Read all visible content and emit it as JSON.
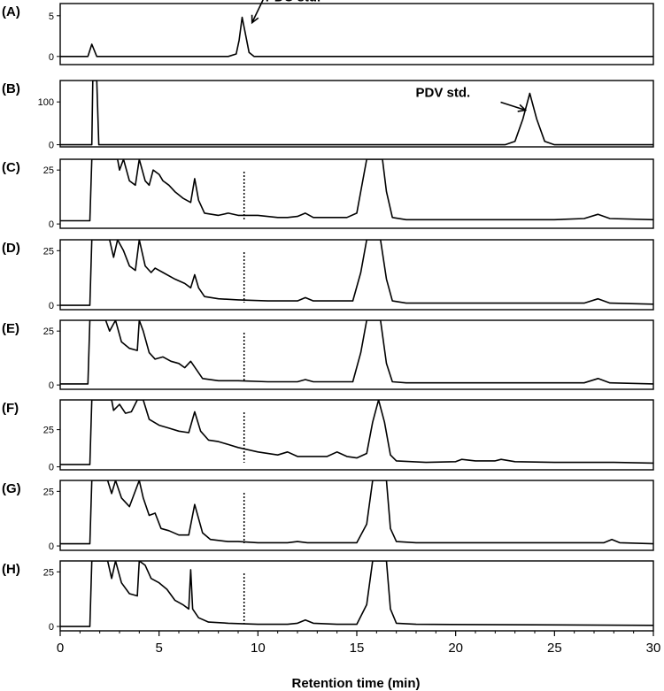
{
  "chart_data": {
    "type": "line",
    "xlabel": "Retention time (min)",
    "xlim": [
      0,
      30
    ],
    "xticks": [
      0,
      5,
      10,
      15,
      20,
      25,
      30
    ],
    "xtick_labels": [
      "0",
      "5",
      "10",
      "15",
      "20",
      "25",
      "30"
    ],
    "marker_time": 9.3,
    "panels": [
      {
        "id": "A",
        "label": "(A)",
        "ylim": [
          -1,
          6.5
        ],
        "yticks": [
          0,
          5
        ],
        "ytick_labels": [
          "0",
          "5"
        ],
        "annotation": {
          "text": "PDC std.",
          "x": 9.3,
          "y": 4.8
        },
        "points": [
          [
            0,
            0
          ],
          [
            1.4,
            0
          ],
          [
            1.6,
            1.5
          ],
          [
            1.85,
            0
          ],
          [
            8.5,
            0
          ],
          [
            8.9,
            0.3
          ],
          [
            9.05,
            2
          ],
          [
            9.2,
            4.8
          ],
          [
            9.35,
            3
          ],
          [
            9.55,
            0.5
          ],
          [
            9.8,
            0
          ],
          [
            30,
            0
          ]
        ]
      },
      {
        "id": "B",
        "label": "(B)",
        "ylim": [
          -5,
          150
        ],
        "yticks": [
          0,
          100
        ],
        "ytick_labels": [
          "0",
          "100"
        ],
        "annotation": {
          "text": "PDV std.",
          "x": 23.8,
          "y": 120
        },
        "points": [
          [
            0,
            0
          ],
          [
            1.6,
            0
          ],
          [
            1.65,
            150
          ],
          [
            1.85,
            150
          ],
          [
            1.95,
            0
          ],
          [
            22.5,
            0
          ],
          [
            23.0,
            8
          ],
          [
            23.4,
            60
          ],
          [
            23.75,
            120
          ],
          [
            24.1,
            60
          ],
          [
            24.5,
            8
          ],
          [
            25.0,
            0
          ],
          [
            30,
            0
          ]
        ]
      },
      {
        "id": "C",
        "label": "(C)",
        "ylim": [
          -2,
          30
        ],
        "yticks": [
          0,
          25
        ],
        "ytick_labels": [
          "0",
          "25"
        ],
        "points": [
          [
            0,
            1.5
          ],
          [
            1.5,
            1.5
          ],
          [
            1.6,
            30
          ],
          [
            2.9,
            30
          ],
          [
            3.0,
            25
          ],
          [
            3.2,
            30
          ],
          [
            3.5,
            20
          ],
          [
            3.8,
            18
          ],
          [
            4.0,
            30
          ],
          [
            4.3,
            20
          ],
          [
            4.5,
            18
          ],
          [
            4.7,
            25
          ],
          [
            5.0,
            23
          ],
          [
            5.2,
            20
          ],
          [
            5.5,
            18
          ],
          [
            5.8,
            15
          ],
          [
            6.2,
            12
          ],
          [
            6.6,
            10
          ],
          [
            6.8,
            21
          ],
          [
            7.0,
            11
          ],
          [
            7.3,
            5
          ],
          [
            8.0,
            4
          ],
          [
            8.5,
            5
          ],
          [
            9.0,
            4
          ],
          [
            10.0,
            4
          ],
          [
            11.0,
            3
          ],
          [
            11.5,
            3
          ],
          [
            12.0,
            3.5
          ],
          [
            12.4,
            5
          ],
          [
            12.8,
            3
          ],
          [
            13.5,
            3
          ],
          [
            14.0,
            3
          ],
          [
            14.5,
            3
          ],
          [
            15.0,
            5
          ],
          [
            15.3,
            20
          ],
          [
            15.5,
            30
          ],
          [
            16.3,
            30
          ],
          [
            16.5,
            15
          ],
          [
            16.8,
            3
          ],
          [
            17.5,
            2
          ],
          [
            19,
            2
          ],
          [
            25,
            2
          ],
          [
            26.5,
            2.5
          ],
          [
            27.2,
            4.5
          ],
          [
            27.8,
            2.5
          ],
          [
            30,
            2
          ]
        ]
      },
      {
        "id": "D",
        "label": "(D)",
        "ylim": [
          -2,
          30
        ],
        "yticks": [
          0,
          25
        ],
        "ytick_labels": [
          "0",
          "25"
        ],
        "points": [
          [
            0,
            0
          ],
          [
            1.5,
            0
          ],
          [
            1.6,
            30
          ],
          [
            2.5,
            30
          ],
          [
            2.7,
            22
          ],
          [
            2.9,
            30
          ],
          [
            3.2,
            25
          ],
          [
            3.5,
            18
          ],
          [
            3.8,
            16
          ],
          [
            4.0,
            30
          ],
          [
            4.3,
            18
          ],
          [
            4.6,
            15
          ],
          [
            4.8,
            17
          ],
          [
            5.2,
            15
          ],
          [
            5.8,
            12
          ],
          [
            6.3,
            10
          ],
          [
            6.6,
            8
          ],
          [
            6.8,
            14
          ],
          [
            7.0,
            8
          ],
          [
            7.3,
            4
          ],
          [
            8.0,
            3
          ],
          [
            9.0,
            2.5
          ],
          [
            10.5,
            2
          ],
          [
            11.5,
            2
          ],
          [
            12.0,
            2
          ],
          [
            12.4,
            3.5
          ],
          [
            12.8,
            2
          ],
          [
            14.0,
            2
          ],
          [
            14.8,
            2
          ],
          [
            15.2,
            15
          ],
          [
            15.5,
            30
          ],
          [
            16.2,
            30
          ],
          [
            16.5,
            12
          ],
          [
            16.8,
            2
          ],
          [
            17.5,
            1
          ],
          [
            26.5,
            1
          ],
          [
            27.2,
            3
          ],
          [
            27.8,
            1
          ],
          [
            30,
            0.5
          ]
        ]
      },
      {
        "id": "E",
        "label": "(E)",
        "ylim": [
          -2,
          30
        ],
        "yticks": [
          0,
          25
        ],
        "ytick_labels": [
          "0",
          "25"
        ],
        "points": [
          [
            0,
            0.5
          ],
          [
            1.4,
            0.5
          ],
          [
            1.5,
            30
          ],
          [
            2.3,
            30
          ],
          [
            2.5,
            25
          ],
          [
            2.8,
            30
          ],
          [
            3.1,
            20
          ],
          [
            3.5,
            17
          ],
          [
            3.9,
            16
          ],
          [
            4.0,
            30
          ],
          [
            4.2,
            25
          ],
          [
            4.5,
            15
          ],
          [
            4.8,
            12
          ],
          [
            5.2,
            13
          ],
          [
            5.6,
            11
          ],
          [
            6.0,
            10
          ],
          [
            6.3,
            8
          ],
          [
            6.6,
            11
          ],
          [
            6.9,
            7
          ],
          [
            7.2,
            3
          ],
          [
            8.0,
            2
          ],
          [
            9.0,
            2
          ],
          [
            10.5,
            1.5
          ],
          [
            11.5,
            1.5
          ],
          [
            12.0,
            1.5
          ],
          [
            12.4,
            2.5
          ],
          [
            12.8,
            1.5
          ],
          [
            14.0,
            1.5
          ],
          [
            14.8,
            1.5
          ],
          [
            15.2,
            15
          ],
          [
            15.5,
            30
          ],
          [
            16.2,
            30
          ],
          [
            16.5,
            10
          ],
          [
            16.8,
            1.5
          ],
          [
            17.5,
            1
          ],
          [
            26.5,
            1
          ],
          [
            27.2,
            3
          ],
          [
            27.8,
            1
          ],
          [
            30,
            0.5
          ]
        ]
      },
      {
        "id": "F",
        "label": "(F)",
        "ylim": [
          -2,
          45
        ],
        "yticks": [
          0,
          25
        ],
        "ytick_labels": [
          "0",
          "25"
        ],
        "points": [
          [
            0,
            1.5
          ],
          [
            1.5,
            1.5
          ],
          [
            1.6,
            45
          ],
          [
            2.6,
            45
          ],
          [
            2.7,
            38
          ],
          [
            3.0,
            42
          ],
          [
            3.3,
            36
          ],
          [
            3.6,
            37
          ],
          [
            3.9,
            45
          ],
          [
            4.2,
            45
          ],
          [
            4.5,
            32
          ],
          [
            5.0,
            28
          ],
          [
            5.5,
            26
          ],
          [
            6.0,
            24
          ],
          [
            6.5,
            23
          ],
          [
            6.8,
            37
          ],
          [
            7.1,
            24
          ],
          [
            7.5,
            18
          ],
          [
            8.0,
            17
          ],
          [
            8.5,
            15
          ],
          [
            9.0,
            13
          ],
          [
            10.0,
            10
          ],
          [
            11.0,
            8
          ],
          [
            11.5,
            10
          ],
          [
            12.0,
            7
          ],
          [
            12.5,
            7
          ],
          [
            13.0,
            7
          ],
          [
            13.5,
            7
          ],
          [
            14.0,
            10
          ],
          [
            14.5,
            7
          ],
          [
            15.0,
            6
          ],
          [
            15.5,
            9
          ],
          [
            15.8,
            30
          ],
          [
            16.1,
            45
          ],
          [
            16.4,
            30
          ],
          [
            16.7,
            8
          ],
          [
            17.0,
            4
          ],
          [
            18.5,
            3
          ],
          [
            20,
            3.5
          ],
          [
            20.3,
            5
          ],
          [
            21,
            4
          ],
          [
            22,
            4
          ],
          [
            22.3,
            5
          ],
          [
            23,
            3.5
          ],
          [
            25,
            3
          ],
          [
            28,
            3
          ],
          [
            30,
            2.5
          ]
        ]
      },
      {
        "id": "G",
        "label": "(G)",
        "ylim": [
          -2,
          30
        ],
        "yticks": [
          0,
          25
        ],
        "ytick_labels": [
          "0",
          "25"
        ],
        "points": [
          [
            0,
            1
          ],
          [
            1.5,
            1
          ],
          [
            1.6,
            30
          ],
          [
            2.4,
            30
          ],
          [
            2.6,
            24
          ],
          [
            2.8,
            30
          ],
          [
            3.1,
            22
          ],
          [
            3.5,
            18
          ],
          [
            4.0,
            30
          ],
          [
            4.2,
            22
          ],
          [
            4.5,
            14
          ],
          [
            4.8,
            15
          ],
          [
            5.1,
            8
          ],
          [
            5.5,
            7
          ],
          [
            6.0,
            5
          ],
          [
            6.5,
            5
          ],
          [
            6.8,
            19
          ],
          [
            7.2,
            6
          ],
          [
            7.6,
            3
          ],
          [
            8.5,
            2
          ],
          [
            9.0,
            2
          ],
          [
            10,
            1.5
          ],
          [
            11.5,
            1.5
          ],
          [
            12,
            2
          ],
          [
            12.5,
            1.5
          ],
          [
            14.0,
            1.5
          ],
          [
            15.0,
            1.5
          ],
          [
            15.5,
            10
          ],
          [
            15.8,
            30
          ],
          [
            16.5,
            30
          ],
          [
            16.7,
            8
          ],
          [
            17.0,
            2
          ],
          [
            18,
            1.5
          ],
          [
            27.5,
            1.5
          ],
          [
            27.9,
            3
          ],
          [
            28.3,
            1.5
          ],
          [
            30,
            1
          ]
        ]
      },
      {
        "id": "H",
        "label": "(H)",
        "ylim": [
          -2,
          30
        ],
        "yticks": [
          0,
          25
        ],
        "ytick_labels": [
          "0",
          "25"
        ],
        "points": [
          [
            0,
            0
          ],
          [
            1.5,
            0
          ],
          [
            1.6,
            30
          ],
          [
            2.4,
            30
          ],
          [
            2.6,
            22
          ],
          [
            2.8,
            30
          ],
          [
            3.1,
            20
          ],
          [
            3.5,
            15
          ],
          [
            3.9,
            14
          ],
          [
            4.0,
            30
          ],
          [
            4.3,
            28
          ],
          [
            4.6,
            22
          ],
          [
            5.0,
            20
          ],
          [
            5.4,
            17
          ],
          [
            5.8,
            12
          ],
          [
            6.2,
            10
          ],
          [
            6.5,
            8
          ],
          [
            6.6,
            26
          ],
          [
            6.7,
            8
          ],
          [
            7.0,
            4
          ],
          [
            7.5,
            2
          ],
          [
            8.5,
            1.5
          ],
          [
            10,
            1
          ],
          [
            11.5,
            1
          ],
          [
            12.0,
            1.5
          ],
          [
            12.4,
            3
          ],
          [
            12.8,
            1.5
          ],
          [
            14.0,
            1
          ],
          [
            15.0,
            1
          ],
          [
            15.5,
            10
          ],
          [
            15.8,
            30
          ],
          [
            16.5,
            30
          ],
          [
            16.7,
            8
          ],
          [
            17.0,
            1.5
          ],
          [
            18,
            1
          ],
          [
            30,
            0.5
          ]
        ]
      }
    ]
  }
}
